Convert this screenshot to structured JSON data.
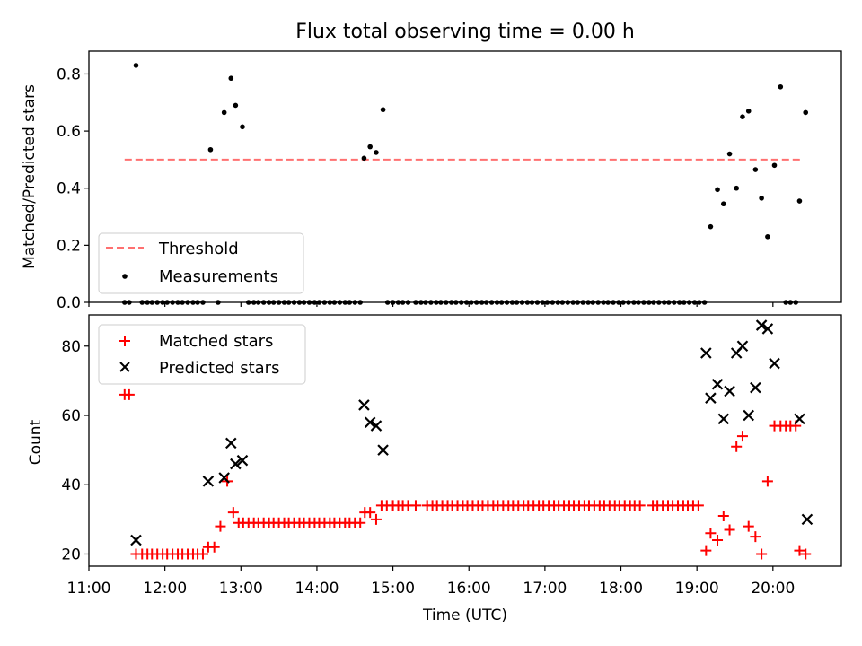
{
  "title": "Flux total observing time = 0.00 h",
  "colors": {
    "threshold": "#ff7070",
    "measurement": "#000000",
    "matched": "#ff0000",
    "predicted": "#000000"
  },
  "chart_data": [
    {
      "type": "scatter",
      "ylabel": "Matched/Predicted stars",
      "xlim": [
        11.0,
        20.9
      ],
      "ylim": [
        0.0,
        0.88
      ],
      "yticks": [
        0.0,
        0.2,
        0.4,
        0.6,
        0.8
      ],
      "ytick_labels": [
        "0.0",
        "0.2",
        "0.4",
        "0.6",
        "0.8"
      ],
      "legend_position": "lower-left",
      "threshold": {
        "name": "Threshold",
        "y": 0.5,
        "x_range": [
          11.47,
          20.4
        ]
      },
      "measurements": {
        "name": "Measurements",
        "x": [
          11.47,
          11.53,
          11.62,
          11.7,
          11.77,
          11.83,
          11.9,
          11.97,
          12.03,
          12.1,
          12.17,
          12.23,
          12.3,
          12.37,
          12.43,
          12.5,
          12.6,
          12.7,
          12.78,
          12.87,
          12.93,
          13.02,
          13.1,
          13.17,
          13.23,
          13.3,
          13.37,
          13.43,
          13.5,
          13.57,
          13.63,
          13.7,
          13.77,
          13.83,
          13.9,
          13.97,
          14.03,
          14.1,
          14.17,
          14.23,
          14.3,
          14.37,
          14.43,
          14.5,
          14.57,
          14.62,
          14.7,
          14.78,
          14.87,
          14.93,
          15.0,
          15.07,
          15.13,
          15.2,
          15.3,
          15.37,
          15.43,
          15.5,
          15.57,
          15.63,
          15.7,
          15.77,
          15.83,
          15.9,
          15.97,
          16.03,
          16.1,
          16.17,
          16.23,
          16.3,
          16.37,
          16.43,
          16.5,
          16.57,
          16.63,
          16.7,
          16.77,
          16.83,
          16.9,
          16.97,
          17.03,
          17.1,
          17.17,
          17.23,
          17.3,
          17.37,
          17.43,
          17.5,
          17.57,
          17.63,
          17.7,
          17.77,
          17.83,
          17.9,
          17.97,
          18.03,
          18.1,
          18.17,
          18.23,
          18.3,
          18.37,
          18.43,
          18.5,
          18.57,
          18.63,
          18.7,
          18.77,
          18.83,
          18.9,
          18.97,
          19.03,
          19.1,
          19.18,
          19.27,
          19.35,
          19.43,
          19.52,
          19.6,
          19.68,
          19.77,
          19.85,
          19.93,
          20.02,
          20.1,
          20.17,
          20.23,
          20.3,
          20.35,
          20.43
        ],
        "y": [
          0,
          0,
          0.83,
          0,
          0,
          0,
          0,
          0,
          0,
          0,
          0,
          0,
          0,
          0,
          0,
          0,
          0.535,
          0,
          0.665,
          0.785,
          0.69,
          0.615,
          0,
          0,
          0,
          0,
          0,
          0,
          0,
          0,
          0,
          0,
          0,
          0,
          0,
          0,
          0,
          0,
          0,
          0,
          0,
          0,
          0,
          0,
          0,
          0.505,
          0.545,
          0.525,
          0.675,
          0,
          0,
          0,
          0,
          0,
          0,
          0,
          0,
          0,
          0,
          0,
          0,
          0,
          0,
          0,
          0,
          0,
          0,
          0,
          0,
          0,
          0,
          0,
          0,
          0,
          0,
          0,
          0,
          0,
          0,
          0,
          0,
          0,
          0,
          0,
          0,
          0,
          0,
          0,
          0,
          0,
          0,
          0,
          0,
          0,
          0,
          0,
          0,
          0,
          0,
          0,
          0,
          0,
          0,
          0,
          0,
          0,
          0,
          0,
          0,
          0,
          0,
          0,
          0.265,
          0.395,
          0.345,
          0.52,
          0.4,
          0.65,
          0.67,
          0.465,
          0.365,
          0.23,
          0.48,
          0.755,
          0,
          0,
          0,
          0.355,
          0.665
        ]
      }
    },
    {
      "type": "scatter",
      "xlabel": "Time (UTC)",
      "ylabel": "Count",
      "xlim": [
        11.0,
        20.9
      ],
      "ylim": [
        16.5,
        89
      ],
      "xticks": [
        11,
        12,
        13,
        14,
        15,
        16,
        17,
        18,
        19,
        20
      ],
      "xtick_labels": [
        "11:00",
        "12:00",
        "13:00",
        "14:00",
        "15:00",
        "16:00",
        "17:00",
        "18:00",
        "19:00",
        "20:00"
      ],
      "yticks": [
        20,
        40,
        60,
        80
      ],
      "ytick_labels": [
        "20",
        "40",
        "60",
        "80"
      ],
      "legend_position": "top-left",
      "series": [
        {
          "name": "Matched stars",
          "marker": "plus",
          "x": [
            11.47,
            11.53,
            11.62,
            11.7,
            11.77,
            11.83,
            11.9,
            11.97,
            12.03,
            12.1,
            12.17,
            12.23,
            12.3,
            12.37,
            12.43,
            12.5,
            12.57,
            12.65,
            12.73,
            12.82,
            12.9,
            12.97,
            13.03,
            13.1,
            13.17,
            13.23,
            13.3,
            13.37,
            13.43,
            13.5,
            13.57,
            13.63,
            13.7,
            13.77,
            13.83,
            13.9,
            13.97,
            14.03,
            14.1,
            14.17,
            14.23,
            14.3,
            14.37,
            14.43,
            14.5,
            14.57,
            14.63,
            14.7,
            14.78,
            14.85,
            14.92,
            15.0,
            15.07,
            15.13,
            15.2,
            15.3,
            15.45,
            15.52,
            15.58,
            15.65,
            15.72,
            15.78,
            15.85,
            15.92,
            15.98,
            16.05,
            16.12,
            16.18,
            16.25,
            16.32,
            16.38,
            16.45,
            16.52,
            16.58,
            16.65,
            16.72,
            16.78,
            16.85,
            16.92,
            16.98,
            17.05,
            17.12,
            17.18,
            17.25,
            17.32,
            17.38,
            17.45,
            17.52,
            17.58,
            17.65,
            17.72,
            17.78,
            17.85,
            17.92,
            17.98,
            18.05,
            18.12,
            18.18,
            18.25,
            18.42,
            18.48,
            18.55,
            18.62,
            18.68,
            18.75,
            18.82,
            18.88,
            18.95,
            19.02,
            19.12,
            19.18,
            19.27,
            19.35,
            19.43,
            19.52,
            19.6,
            19.68,
            19.77,
            19.85,
            19.93,
            20.02,
            20.1,
            20.17,
            20.23,
            20.3,
            20.35,
            20.43
          ],
          "y": [
            66,
            66,
            20,
            20,
            20,
            20,
            20,
            20,
            20,
            20,
            20,
            20,
            20,
            20,
            20,
            20,
            22,
            22,
            28,
            41,
            32,
            29,
            29,
            29,
            29,
            29,
            29,
            29,
            29,
            29,
            29,
            29,
            29,
            29,
            29,
            29,
            29,
            29,
            29,
            29,
            29,
            29,
            29,
            29,
            29,
            29,
            32,
            32,
            30,
            34,
            34,
            34,
            34,
            34,
            34,
            34,
            34,
            34,
            34,
            34,
            34,
            34,
            34,
            34,
            34,
            34,
            34,
            34,
            34,
            34,
            34,
            34,
            34,
            34,
            34,
            34,
            34,
            34,
            34,
            34,
            34,
            34,
            34,
            34,
            34,
            34,
            34,
            34,
            34,
            34,
            34,
            34,
            34,
            34,
            34,
            34,
            34,
            34,
            34,
            34,
            34,
            34,
            34,
            34,
            34,
            34,
            34,
            34,
            34,
            21,
            26,
            24,
            31,
            27,
            51,
            54,
            28,
            25,
            20,
            41,
            57,
            57,
            57,
            57,
            57,
            21,
            20
          ]
        },
        {
          "name": "Predicted stars",
          "marker": "x",
          "x": [
            11.62,
            12.57,
            12.78,
            12.87,
            12.93,
            13.02,
            14.62,
            14.7,
            14.78,
            14.87,
            19.12,
            19.18,
            19.27,
            19.35,
            19.43,
            19.52,
            19.6,
            19.68,
            19.77,
            19.85,
            19.93,
            20.02,
            20.35,
            20.45
          ],
          "y": [
            24,
            41,
            42,
            52,
            46,
            47,
            63,
            58,
            57,
            50,
            78,
            65,
            69,
            59,
            67,
            78,
            80,
            60,
            68,
            86,
            85,
            75,
            59,
            30
          ]
        }
      ]
    }
  ]
}
